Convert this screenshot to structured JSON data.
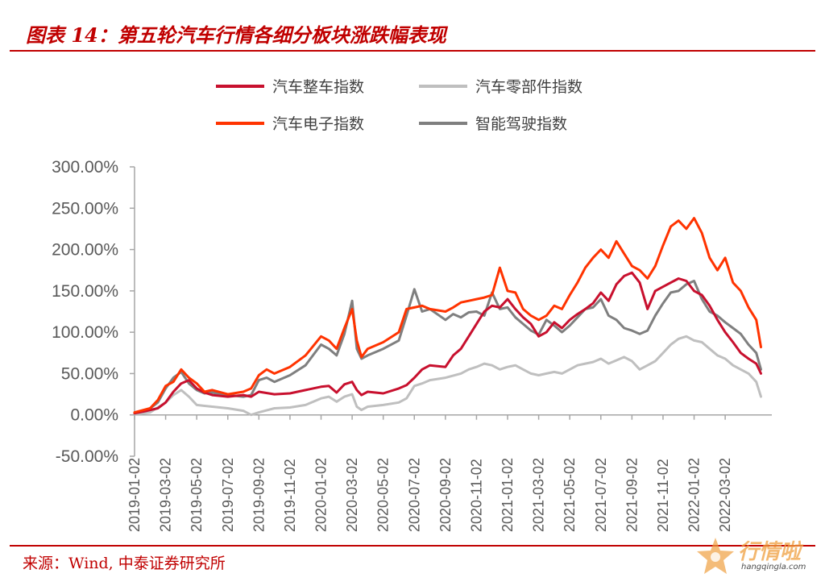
{
  "header": {
    "title": "图表 14：第五轮汽车行情各细分板块涨跌幅表现"
  },
  "footer": {
    "source": "来源：Wind, 中泰证券研究所"
  },
  "watermark": {
    "brand": "行情啦",
    "site": "hangqingla.com"
  },
  "chart_data": {
    "type": "line",
    "title": "",
    "xlabel": "",
    "ylabel": "",
    "ylim": [
      -50,
      300
    ],
    "y_ticks": [
      -50,
      0,
      50,
      100,
      150,
      200,
      250,
      300
    ],
    "y_tick_labels": [
      "-50.00%",
      "0.00%",
      "50.00%",
      "100.00%",
      "150.00%",
      "200.00%",
      "250.00%",
      "300.00%"
    ],
    "x_range": [
      0,
      41
    ],
    "x_ticks": [
      0,
      2,
      4,
      6,
      8,
      10,
      12,
      14,
      16,
      18,
      20,
      22,
      24,
      26,
      28,
      30,
      32,
      34,
      36,
      38
    ],
    "x_tick_labels": [
      "2019-01-02",
      "2019-03-02",
      "2019-05-02",
      "2019-07-02",
      "2019-09-02",
      "2019-11-02",
      "2020-01-02",
      "2020-03-02",
      "2020-05-02",
      "2020-07-02",
      "2020-09-02",
      "2020-11-02",
      "2021-01-02",
      "2021-03-02",
      "2021-05-02",
      "2021-07-02",
      "2021-09-02",
      "2021-11-02",
      "2022-01-02",
      "2022-03-02"
    ],
    "legend_position": "top-center",
    "series": [
      {
        "name": "汽车整车指数",
        "color": "#c8102e",
        "points": [
          [
            0,
            2
          ],
          [
            0.8,
            5
          ],
          [
            1.5,
            8
          ],
          [
            2,
            15
          ],
          [
            2.5,
            28
          ],
          [
            3,
            38
          ],
          [
            3.5,
            42
          ],
          [
            4,
            32
          ],
          [
            4.5,
            27
          ],
          [
            5,
            24
          ],
          [
            6,
            22
          ],
          [
            7,
            24
          ],
          [
            7.5,
            22
          ],
          [
            8,
            28
          ],
          [
            9,
            25
          ],
          [
            10,
            26
          ],
          [
            11,
            30
          ],
          [
            12,
            34
          ],
          [
            12.5,
            35
          ],
          [
            13,
            27
          ],
          [
            13.5,
            37
          ],
          [
            14,
            40
          ],
          [
            14.3,
            30
          ],
          [
            14.6,
            24
          ],
          [
            15,
            28
          ],
          [
            16,
            26
          ],
          [
            17,
            32
          ],
          [
            17.5,
            36
          ],
          [
            18,
            45
          ],
          [
            18.5,
            55
          ],
          [
            19,
            60
          ],
          [
            20,
            58
          ],
          [
            20.5,
            72
          ],
          [
            21,
            80
          ],
          [
            21.5,
            95
          ],
          [
            22,
            110
          ],
          [
            22.5,
            125
          ],
          [
            23,
            132
          ],
          [
            23.5,
            130
          ],
          [
            24,
            140
          ],
          [
            24.5,
            128
          ],
          [
            25,
            118
          ],
          [
            25.5,
            110
          ],
          [
            26,
            95
          ],
          [
            26.5,
            100
          ],
          [
            27,
            112
          ],
          [
            27.5,
            105
          ],
          [
            28,
            115
          ],
          [
            28.5,
            122
          ],
          [
            29,
            128
          ],
          [
            29.5,
            135
          ],
          [
            30,
            148
          ],
          [
            30.5,
            138
          ],
          [
            31,
            158
          ],
          [
            31.5,
            168
          ],
          [
            32,
            172
          ],
          [
            32.5,
            160
          ],
          [
            33,
            128
          ],
          [
            33.5,
            150
          ],
          [
            34,
            155
          ],
          [
            34.5,
            160
          ],
          [
            35,
            165
          ],
          [
            35.5,
            162
          ],
          [
            36,
            150
          ],
          [
            36.5,
            145
          ],
          [
            37,
            132
          ],
          [
            37.5,
            115
          ],
          [
            38,
            100
          ],
          [
            38.5,
            88
          ],
          [
            39,
            75
          ],
          [
            39.5,
            68
          ],
          [
            40,
            62
          ],
          [
            40.3,
            50
          ]
        ]
      },
      {
        "name": "汽车零部件指数",
        "color": "#bfbfbf",
        "points": [
          [
            0,
            1
          ],
          [
            1,
            3
          ],
          [
            2,
            15
          ],
          [
            2.5,
            24
          ],
          [
            3,
            30
          ],
          [
            3.5,
            22
          ],
          [
            4,
            12
          ],
          [
            5,
            10
          ],
          [
            6,
            8
          ],
          [
            7,
            5
          ],
          [
            7.5,
            0
          ],
          [
            8,
            3
          ],
          [
            9,
            8
          ],
          [
            10,
            9
          ],
          [
            11,
            12
          ],
          [
            12,
            20
          ],
          [
            12.5,
            22
          ],
          [
            13,
            16
          ],
          [
            13.5,
            22
          ],
          [
            14,
            25
          ],
          [
            14.3,
            10
          ],
          [
            14.6,
            6
          ],
          [
            15,
            10
          ],
          [
            16,
            12
          ],
          [
            17,
            15
          ],
          [
            17.5,
            20
          ],
          [
            18,
            35
          ],
          [
            18.5,
            38
          ],
          [
            19,
            42
          ],
          [
            20,
            45
          ],
          [
            21,
            50
          ],
          [
            21.5,
            55
          ],
          [
            22,
            58
          ],
          [
            22.5,
            62
          ],
          [
            23,
            60
          ],
          [
            23.5,
            55
          ],
          [
            24,
            58
          ],
          [
            24.5,
            60
          ],
          [
            25,
            55
          ],
          [
            25.5,
            50
          ],
          [
            26,
            48
          ],
          [
            26.5,
            50
          ],
          [
            27,
            52
          ],
          [
            27.5,
            50
          ],
          [
            28,
            55
          ],
          [
            28.5,
            60
          ],
          [
            29,
            62
          ],
          [
            29.5,
            64
          ],
          [
            30,
            68
          ],
          [
            30.5,
            62
          ],
          [
            31,
            66
          ],
          [
            31.5,
            70
          ],
          [
            32,
            65
          ],
          [
            32.5,
            55
          ],
          [
            33,
            60
          ],
          [
            33.5,
            65
          ],
          [
            34,
            75
          ],
          [
            34.5,
            85
          ],
          [
            35,
            92
          ],
          [
            35.5,
            95
          ],
          [
            36,
            90
          ],
          [
            36.5,
            88
          ],
          [
            37,
            80
          ],
          [
            37.5,
            72
          ],
          [
            38,
            68
          ],
          [
            38.5,
            60
          ],
          [
            39,
            55
          ],
          [
            39.5,
            50
          ],
          [
            40,
            40
          ],
          [
            40.3,
            22
          ]
        ]
      },
      {
        "name": "汽车电子指数",
        "color": "#ff3300",
        "points": [
          [
            0,
            3
          ],
          [
            1,
            8
          ],
          [
            1.5,
            18
          ],
          [
            2,
            35
          ],
          [
            2.5,
            40
          ],
          [
            3,
            55
          ],
          [
            3.5,
            45
          ],
          [
            4,
            38
          ],
          [
            4.5,
            28
          ],
          [
            5,
            30
          ],
          [
            6,
            25
          ],
          [
            7,
            28
          ],
          [
            7.5,
            32
          ],
          [
            8,
            48
          ],
          [
            8.5,
            55
          ],
          [
            9,
            50
          ],
          [
            10,
            58
          ],
          [
            11,
            72
          ],
          [
            12,
            95
          ],
          [
            12.5,
            90
          ],
          [
            13,
            80
          ],
          [
            13.5,
            105
          ],
          [
            14,
            128
          ],
          [
            14.3,
            90
          ],
          [
            14.6,
            70
          ],
          [
            15,
            80
          ],
          [
            16,
            88
          ],
          [
            17,
            100
          ],
          [
            17.5,
            128
          ],
          [
            18,
            130
          ],
          [
            18.5,
            132
          ],
          [
            19,
            128
          ],
          [
            20,
            125
          ],
          [
            20.5,
            130
          ],
          [
            21,
            136
          ],
          [
            21.5,
            138
          ],
          [
            22,
            140
          ],
          [
            22.5,
            142
          ],
          [
            23,
            145
          ],
          [
            23.5,
            178
          ],
          [
            24,
            150
          ],
          [
            24.5,
            148
          ],
          [
            25,
            128
          ],
          [
            25.5,
            120
          ],
          [
            26,
            115
          ],
          [
            26.5,
            120
          ],
          [
            27,
            132
          ],
          [
            27.5,
            128
          ],
          [
            28,
            145
          ],
          [
            28.5,
            160
          ],
          [
            29,
            178
          ],
          [
            29.5,
            190
          ],
          [
            30,
            200
          ],
          [
            30.5,
            190
          ],
          [
            31,
            210
          ],
          [
            31.5,
            195
          ],
          [
            32,
            180
          ],
          [
            32.5,
            175
          ],
          [
            33,
            165
          ],
          [
            33.5,
            180
          ],
          [
            34,
            205
          ],
          [
            34.5,
            228
          ],
          [
            35,
            235
          ],
          [
            35.5,
            225
          ],
          [
            36,
            238
          ],
          [
            36.5,
            220
          ],
          [
            37,
            190
          ],
          [
            37.5,
            175
          ],
          [
            38,
            190
          ],
          [
            38.5,
            160
          ],
          [
            39,
            150
          ],
          [
            39.5,
            130
          ],
          [
            40,
            115
          ],
          [
            40.3,
            82
          ]
        ]
      },
      {
        "name": "智能驾驶指数",
        "color": "#7f7f7f",
        "points": [
          [
            0,
            2
          ],
          [
            1,
            8
          ],
          [
            1.5,
            15
          ],
          [
            2,
            32
          ],
          [
            2.5,
            45
          ],
          [
            3,
            52
          ],
          [
            3.5,
            38
          ],
          [
            4,
            30
          ],
          [
            4.5,
            26
          ],
          [
            5,
            27
          ],
          [
            6,
            24
          ],
          [
            7,
            22
          ],
          [
            7.5,
            24
          ],
          [
            8,
            42
          ],
          [
            8.5,
            45
          ],
          [
            9,
            40
          ],
          [
            10,
            48
          ],
          [
            11,
            60
          ],
          [
            12,
            85
          ],
          [
            12.5,
            80
          ],
          [
            13,
            72
          ],
          [
            13.5,
            98
          ],
          [
            14,
            138
          ],
          [
            14.3,
            80
          ],
          [
            14.6,
            68
          ],
          [
            15,
            72
          ],
          [
            16,
            80
          ],
          [
            17,
            90
          ],
          [
            17.5,
            120
          ],
          [
            18,
            152
          ],
          [
            18.5,
            125
          ],
          [
            19,
            128
          ],
          [
            20,
            115
          ],
          [
            20.5,
            122
          ],
          [
            21,
            118
          ],
          [
            21.5,
            124
          ],
          [
            22,
            125
          ],
          [
            22.5,
            120
          ],
          [
            23,
            148
          ],
          [
            23.5,
            128
          ],
          [
            24,
            130
          ],
          [
            24.5,
            118
          ],
          [
            25,
            110
          ],
          [
            25.5,
            102
          ],
          [
            26,
            97
          ],
          [
            26.5,
            115
          ],
          [
            27,
            108
          ],
          [
            27.5,
            100
          ],
          [
            28,
            108
          ],
          [
            28.5,
            118
          ],
          [
            29,
            128
          ],
          [
            29.5,
            130
          ],
          [
            30,
            140
          ],
          [
            30.5,
            120
          ],
          [
            31,
            115
          ],
          [
            31.5,
            105
          ],
          [
            32,
            102
          ],
          [
            32.5,
            98
          ],
          [
            33,
            102
          ],
          [
            33.5,
            120
          ],
          [
            34,
            135
          ],
          [
            34.5,
            148
          ],
          [
            35,
            150
          ],
          [
            35.5,
            158
          ],
          [
            36,
            162
          ],
          [
            36.5,
            140
          ],
          [
            37,
            125
          ],
          [
            37.5,
            120
          ],
          [
            38,
            112
          ],
          [
            38.5,
            105
          ],
          [
            39,
            98
          ],
          [
            39.5,
            85
          ],
          [
            40,
            75
          ],
          [
            40.3,
            55
          ]
        ]
      }
    ]
  }
}
